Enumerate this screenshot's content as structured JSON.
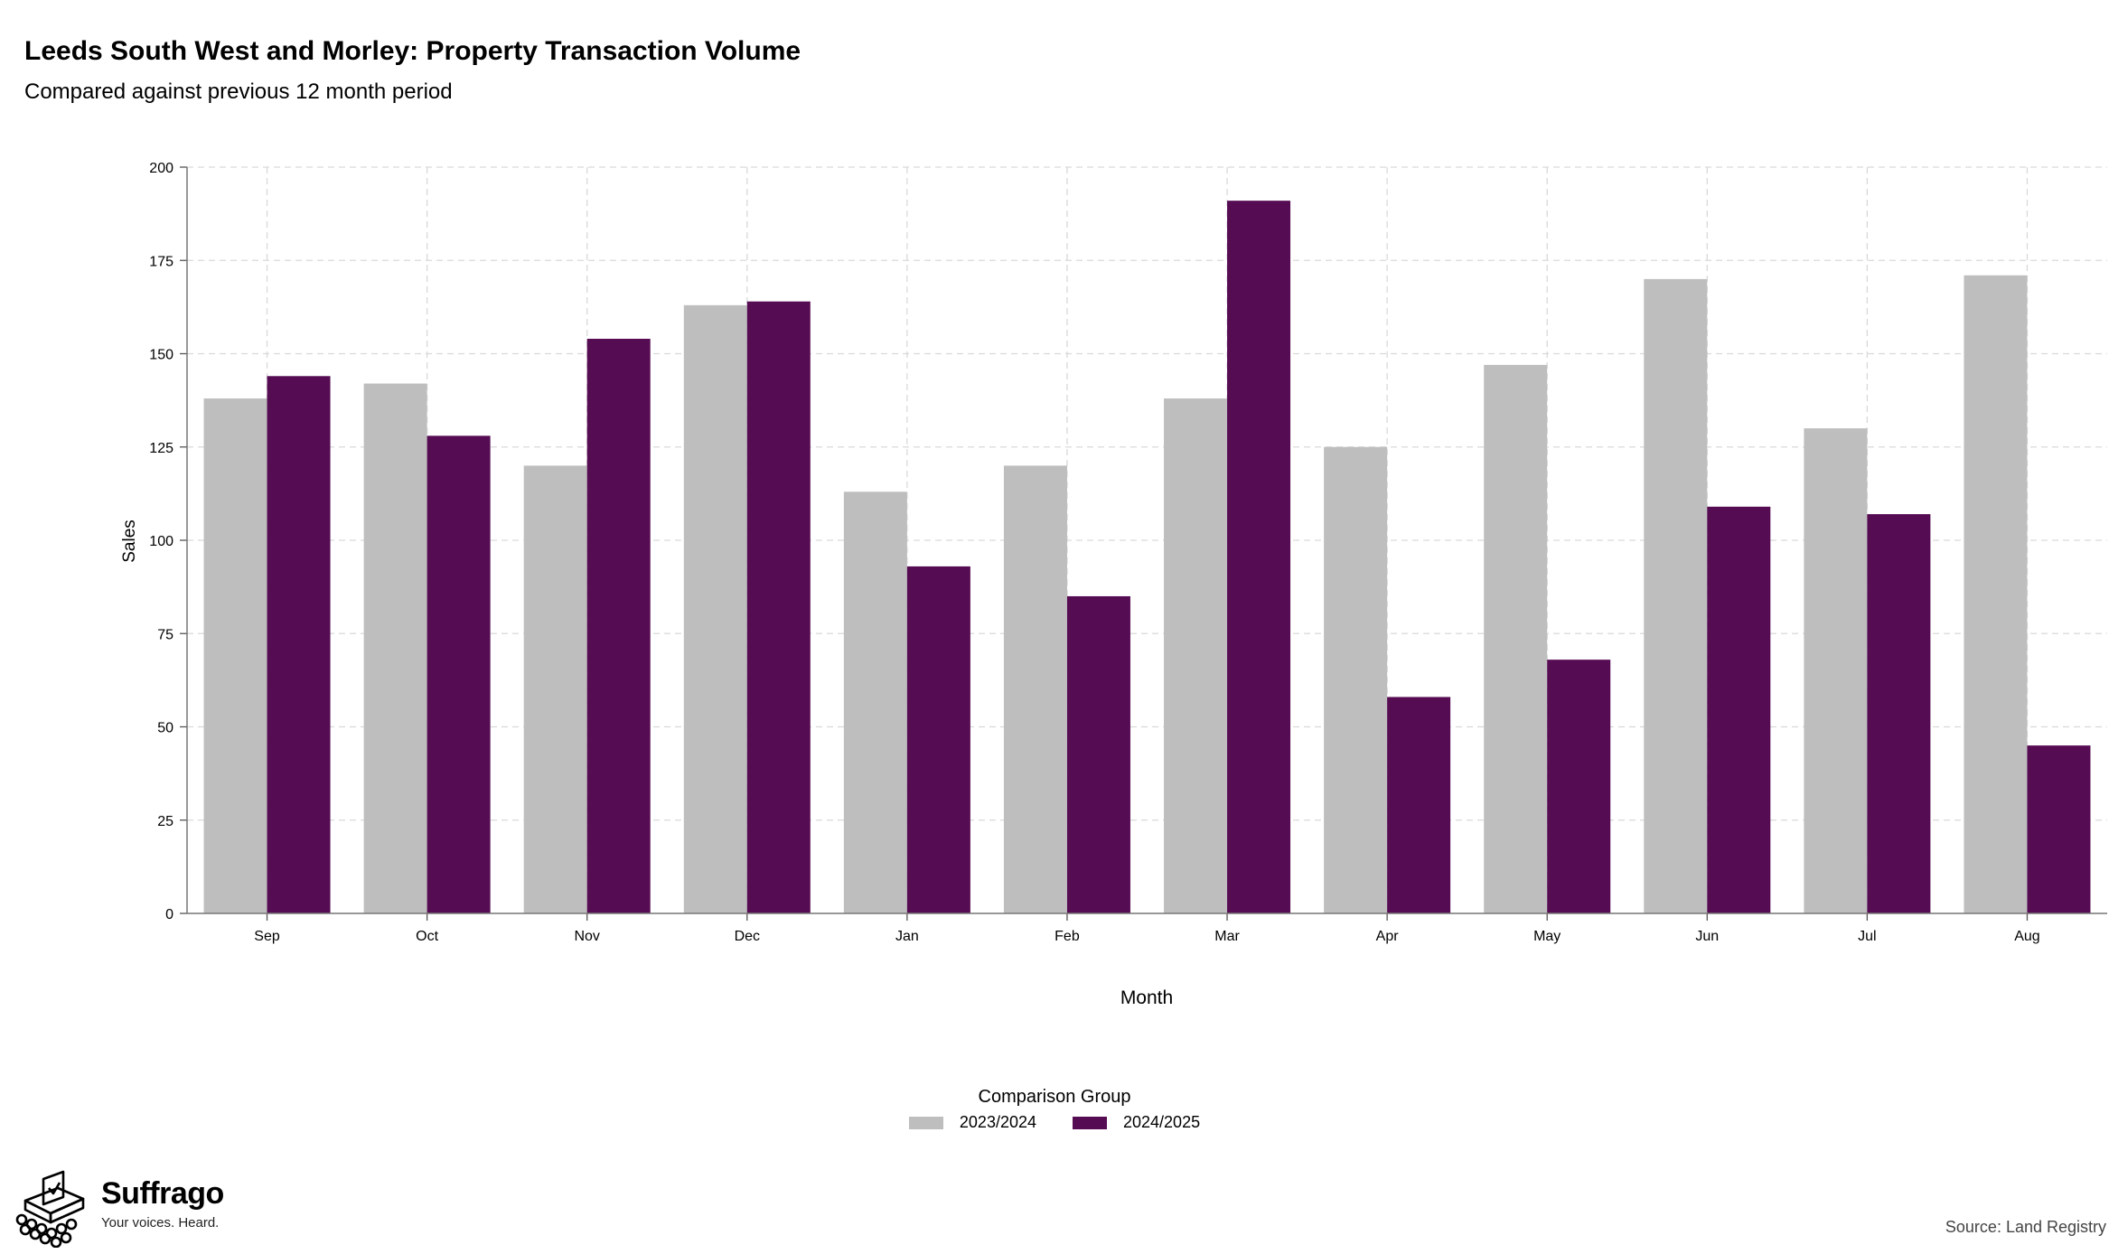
{
  "header": {
    "title": "Leeds South West and Morley: Property Transaction Volume",
    "subtitle": "Compared against previous 12 month period"
  },
  "chart_data": {
    "type": "bar",
    "title": "Leeds South West and Morley: Property Transaction Volume",
    "subtitle": "Compared against previous 12 month period",
    "xlabel": "Month",
    "ylabel": "Sales",
    "categories": [
      "Sep",
      "Oct",
      "Nov",
      "Dec",
      "Jan",
      "Feb",
      "Mar",
      "Apr",
      "May",
      "Jun",
      "Jul",
      "Aug"
    ],
    "series": [
      {
        "name": "2023/2024",
        "color": "#bebebe",
        "values": [
          138,
          142,
          120,
          163,
          113,
          120,
          138,
          125,
          147,
          170,
          130,
          171
        ]
      },
      {
        "name": "2024/2025",
        "color": "#560c53",
        "values": [
          144,
          128,
          154,
          164,
          93,
          85,
          191,
          58,
          68,
          109,
          107,
          45
        ]
      }
    ],
    "ylim": [
      0,
      200
    ],
    "yticks": [
      0,
      25,
      50,
      75,
      100,
      125,
      150,
      175,
      200
    ],
    "grid": true,
    "legend_title": "Comparison Group",
    "legend_position": "bottom"
  },
  "legend": {
    "title": "Comparison Group",
    "items": [
      {
        "label": "2023/2024",
        "color": "#bebebe"
      },
      {
        "label": "2024/2025",
        "color": "#560c53"
      }
    ]
  },
  "footer": {
    "brand": "Suffrago",
    "tagline": "Your voices. Heard.",
    "source": "Source: Land Registry"
  }
}
